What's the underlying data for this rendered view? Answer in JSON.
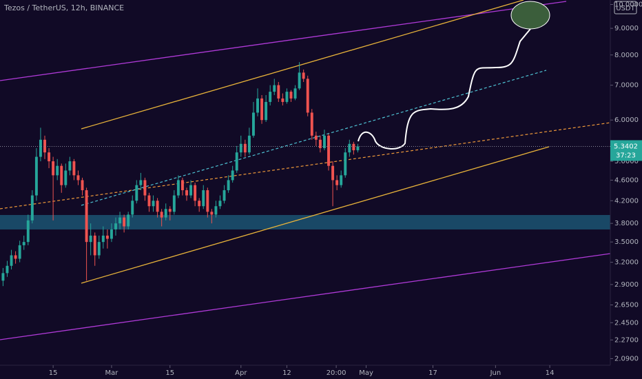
{
  "chart_data": {
    "type": "candlestick",
    "title": "Tezos / TetherUS, 12h, BINANCE",
    "currency": "USDT",
    "last_price": 5.3402,
    "countdown": "37:23",
    "log_scale": true,
    "up_color": "#26a69a",
    "down_color": "#ef5350",
    "xlim": [
      2.27,
      148.5
    ],
    "ylim": [
      2.03,
      10.2
    ],
    "xticks": [
      {
        "value": 15,
        "label": "15"
      },
      {
        "value": 29,
        "label": "Mar"
      },
      {
        "value": 43,
        "label": "15"
      },
      {
        "value": 60,
        "label": "Apr"
      },
      {
        "value": 71,
        "label": "12"
      },
      {
        "value": 82.83,
        "label": "20:00"
      },
      {
        "value": 90,
        "label": "May"
      },
      {
        "value": 106,
        "label": "17"
      },
      {
        "value": 121,
        "label": "Jun"
      },
      {
        "value": 134,
        "label": "14"
      }
    ],
    "yticks": [
      {
        "value": 10,
        "label": "10.0000"
      },
      {
        "value": 9,
        "label": "9.0000"
      },
      {
        "value": 8,
        "label": "8.0000"
      },
      {
        "value": 7,
        "label": "7.0000"
      },
      {
        "value": 6,
        "label": "6.0000"
      },
      {
        "value": 5,
        "label": "5.0000"
      },
      {
        "value": 4.6,
        "label": "4.6000"
      },
      {
        "value": 4.2,
        "label": "4.2000"
      },
      {
        "value": 3.8,
        "label": "3.8000"
      },
      {
        "value": 3.5,
        "label": "3.5000"
      },
      {
        "value": 3.2,
        "label": "3.2000"
      },
      {
        "value": 2.9,
        "label": "2.9000"
      },
      {
        "value": 2.65,
        "label": "2.6500"
      },
      {
        "value": 2.45,
        "label": "2.4500"
      },
      {
        "value": 2.27,
        "label": "2.2700"
      },
      {
        "value": 2.09,
        "label": "2.0900"
      }
    ],
    "x": [
      3,
      4,
      5,
      6,
      7,
      8,
      9,
      10,
      11,
      12,
      13,
      14,
      15,
      16,
      17,
      18,
      19,
      20,
      21,
      22,
      23,
      24,
      25,
      26,
      27,
      28,
      29,
      30,
      31,
      32,
      33,
      34,
      35,
      36,
      37,
      38,
      39,
      40,
      41,
      42,
      43,
      44,
      45,
      46,
      47,
      48,
      49,
      50,
      51,
      52,
      53,
      54,
      55,
      56,
      57,
      58,
      59,
      60,
      61,
      62,
      63,
      64,
      65,
      66,
      67,
      68,
      69,
      70,
      71,
      72,
      73,
      74,
      75,
      76,
      77,
      78,
      79,
      80,
      81,
      82,
      83,
      84,
      85,
      86,
      87,
      88
    ],
    "open": [
      2.95,
      3.05,
      3.15,
      3.3,
      3.25,
      3.45,
      3.5,
      3.85,
      4.3,
      5.1,
      5.5,
      5.2,
      5.0,
      4.7,
      4.9,
      4.5,
      4.8,
      5.0,
      4.7,
      4.6,
      4.4,
      3.5,
      3.6,
      3.3,
      3.5,
      3.6,
      3.55,
      3.7,
      3.8,
      3.9,
      3.75,
      3.95,
      4.2,
      4.5,
      4.6,
      4.3,
      4.1,
      4.2,
      4.0,
      3.9,
      4.05,
      4.0,
      4.3,
      4.6,
      4.4,
      4.3,
      4.5,
      4.2,
      4.1,
      4.4,
      4.0,
      3.95,
      4.1,
      4.2,
      4.4,
      4.6,
      4.8,
      5.2,
      5.4,
      5.2,
      5.6,
      6.2,
      6.6,
      6.0,
      6.5,
      6.8,
      7.0,
      6.6,
      6.5,
      6.8,
      6.6,
      6.9,
      7.4,
      7.2,
      6.2,
      5.6,
      5.5,
      5.3,
      5.6,
      4.9,
      4.6,
      4.5,
      4.7,
      5.2,
      5.4,
      5.25
    ],
    "high": [
      3.12,
      3.22,
      3.38,
      3.36,
      3.52,
      3.6,
      3.95,
      4.4,
      5.3,
      5.8,
      5.6,
      5.3,
      5.1,
      5.05,
      4.95,
      4.95,
      5.1,
      5.05,
      4.8,
      4.65,
      4.45,
      3.8,
      3.65,
      3.6,
      3.75,
      3.7,
      3.8,
      3.9,
      4.0,
      3.95,
      4.0,
      4.3,
      4.6,
      4.75,
      4.65,
      4.35,
      4.3,
      4.25,
      4.05,
      4.15,
      4.1,
      4.4,
      4.7,
      4.65,
      4.45,
      4.6,
      4.55,
      4.25,
      4.5,
      4.45,
      4.05,
      4.2,
      4.3,
      4.5,
      4.7,
      4.9,
      5.35,
      5.6,
      5.5,
      5.8,
      6.5,
      6.9,
      6.7,
      6.7,
      7.0,
      7.2,
      7.1,
      6.75,
      6.9,
      6.85,
      7.0,
      7.75,
      7.5,
      7.3,
      6.3,
      5.7,
      5.6,
      5.75,
      5.65,
      5.0,
      4.7,
      4.8,
      5.3,
      5.5,
      5.45,
      5.4
    ],
    "low": [
      2.88,
      3.0,
      3.1,
      3.18,
      3.2,
      3.38,
      3.45,
      3.8,
      4.2,
      5.0,
      5.05,
      4.85,
      3.85,
      4.6,
      4.35,
      4.45,
      4.7,
      4.6,
      4.5,
      4.3,
      2.95,
      3.3,
      3.15,
      3.25,
      3.4,
      3.4,
      3.5,
      3.6,
      3.7,
      3.65,
      3.7,
      3.9,
      4.15,
      4.4,
      4.2,
      4.0,
      4.0,
      3.9,
      3.75,
      3.85,
      3.85,
      3.95,
      4.25,
      4.3,
      4.2,
      4.25,
      4.1,
      4.0,
      4.05,
      3.9,
      3.8,
      3.9,
      4.05,
      4.15,
      4.35,
      4.55,
      4.75,
      5.1,
      5.1,
      5.15,
      5.55,
      6.1,
      5.9,
      5.95,
      6.4,
      6.7,
      6.5,
      6.4,
      6.45,
      6.5,
      6.55,
      6.85,
      7.1,
      6.1,
      5.5,
      5.35,
      5.2,
      5.25,
      4.8,
      4.1,
      4.4,
      4.45,
      4.65,
      5.1,
      5.15,
      5.2
    ],
    "close": [
      3.05,
      3.15,
      3.3,
      3.25,
      3.45,
      3.5,
      3.85,
      4.3,
      5.1,
      5.5,
      5.2,
      5.0,
      4.7,
      4.9,
      4.5,
      4.8,
      5.0,
      4.7,
      4.6,
      4.4,
      3.5,
      3.6,
      3.3,
      3.5,
      3.6,
      3.55,
      3.7,
      3.8,
      3.9,
      3.75,
      3.95,
      4.2,
      4.5,
      4.6,
      4.3,
      4.1,
      4.2,
      4.0,
      3.9,
      4.05,
      4.0,
      4.3,
      4.6,
      4.4,
      4.3,
      4.5,
      4.2,
      4.1,
      4.4,
      4.0,
      3.95,
      4.1,
      4.2,
      4.4,
      4.6,
      4.8,
      5.2,
      5.4,
      5.2,
      5.6,
      6.2,
      6.6,
      6.0,
      6.5,
      6.8,
      7.0,
      6.6,
      6.5,
      6.8,
      6.6,
      6.9,
      7.4,
      7.2,
      6.2,
      5.6,
      5.5,
      5.3,
      5.6,
      4.9,
      4.6,
      4.5,
      4.7,
      5.2,
      5.4,
      5.25,
      5.34
    ]
  }
}
